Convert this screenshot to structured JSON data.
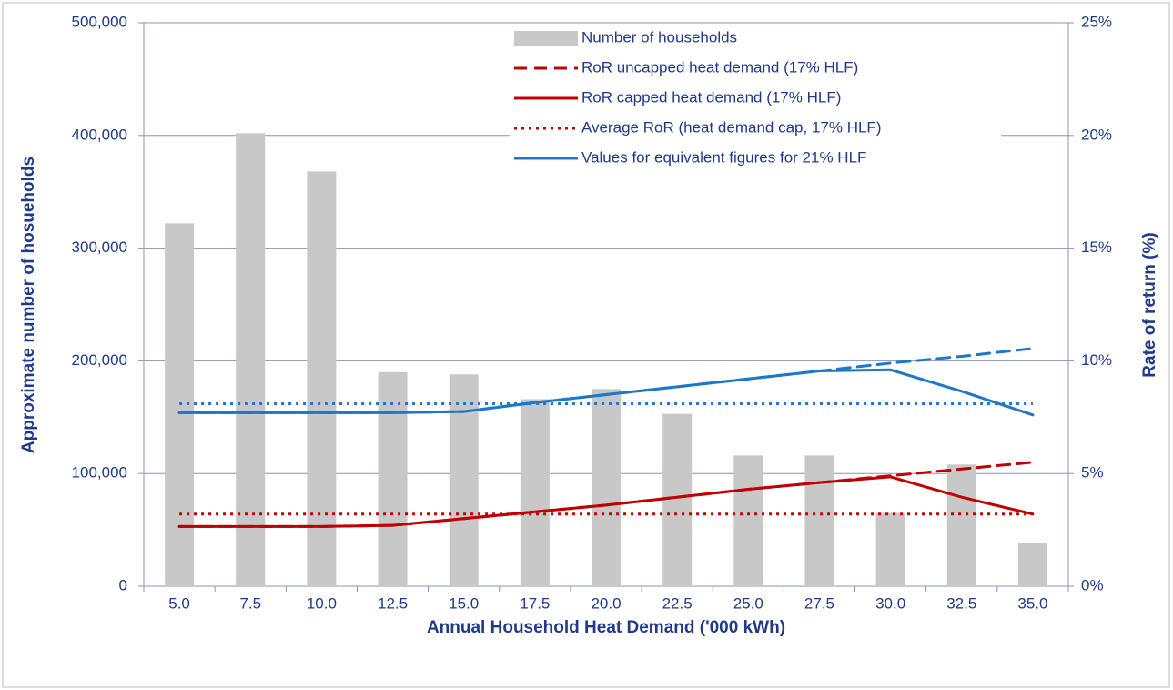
{
  "chart_data": {
    "type": "bar_line",
    "x_label": "Annual Household Heat Demand ('000 kWh)",
    "y_label": "Approximate number of hosueholds",
    "y2_label": "Rate of return (%)",
    "categories": [
      "5.0",
      "7.5",
      "10.0",
      "12.5",
      "15.0",
      "17.5",
      "20.0",
      "22.5",
      "25.0",
      "27.5",
      "30.0",
      "32.5",
      "35.0"
    ],
    "ylim": [
      0,
      500000
    ],
    "yticks": [
      0,
      {
        "value": 100000,
        "label": "100,000"
      },
      {
        "value": 200000,
        "label": "200,000"
      },
      {
        "value": 300000,
        "label": "300,000"
      },
      {
        "value": 400000,
        "label": "400,000"
      },
      {
        "value": 500000,
        "label": "500,000"
      }
    ],
    "y2lim": [
      0,
      25
    ],
    "y2ticks": [
      {
        "value": 0,
        "label": "0%"
      },
      {
        "value": 5,
        "label": "5%"
      },
      {
        "value": 10,
        "label": "10%"
      },
      {
        "value": 15,
        "label": "15%"
      },
      {
        "value": 20,
        "label": "20%"
      },
      {
        "value": 25,
        "label": "25%"
      }
    ],
    "grid": true,
    "series": [
      {
        "name": "Number of households",
        "type": "bar",
        "color": "#c8c8c8",
        "values": [
          322000,
          402000,
          368000,
          190000,
          188000,
          166000,
          175000,
          153000,
          116000,
          116000,
          65000,
          108000,
          38000
        ]
      },
      {
        "name": "RoR uncapped heat demand (17% HLF)",
        "type": "line",
        "axis": "y2",
        "style": "dashed",
        "color": "#c00000",
        "values": [
          2.65,
          2.65,
          2.65,
          2.7,
          3.0,
          3.3,
          3.6,
          3.95,
          4.3,
          4.6,
          4.9,
          5.2,
          5.5
        ]
      },
      {
        "name": "RoR capped heat demand (17% HLF)",
        "type": "line",
        "axis": "y2",
        "style": "solid",
        "color": "#c00000",
        "values": [
          2.65,
          2.65,
          2.65,
          2.7,
          3.0,
          3.3,
          3.6,
          3.95,
          4.3,
          4.6,
          4.85,
          3.95,
          3.2
        ]
      },
      {
        "name": "Average RoR (heat demand cap, 17% HLF)",
        "type": "line",
        "axis": "y2",
        "style": "dotted",
        "color": "#c00000",
        "values": [
          3.2,
          3.2,
          3.2,
          3.2,
          3.2,
          3.2,
          3.2,
          3.2,
          3.2,
          3.2,
          3.2,
          3.2,
          3.2
        ]
      },
      {
        "type": "line",
        "axis": "y2",
        "style": "dashed",
        "color": "#1f77c8",
        "values": [
          7.7,
          7.7,
          7.7,
          7.7,
          7.75,
          8.15,
          8.5,
          8.85,
          9.2,
          9.55,
          9.9,
          10.2,
          10.55
        ]
      },
      {
        "type": "line",
        "axis": "y2",
        "style": "solid",
        "color": "#1f77c8",
        "values": [
          7.7,
          7.7,
          7.7,
          7.7,
          7.75,
          8.15,
          8.5,
          8.85,
          9.2,
          9.55,
          9.6,
          8.65,
          7.6
        ]
      },
      {
        "type": "line",
        "axis": "y2",
        "style": "dotted",
        "color": "#1f77c8",
        "values": [
          8.1,
          8.1,
          8.1,
          8.1,
          8.1,
          8.1,
          8.1,
          8.1,
          8.1,
          8.1,
          8.1,
          8.1,
          8.1
        ]
      }
    ],
    "legend_note": {
      "label": "Values for equivalent figures for 21% HLF",
      "color": "#1f77c8"
    }
  }
}
